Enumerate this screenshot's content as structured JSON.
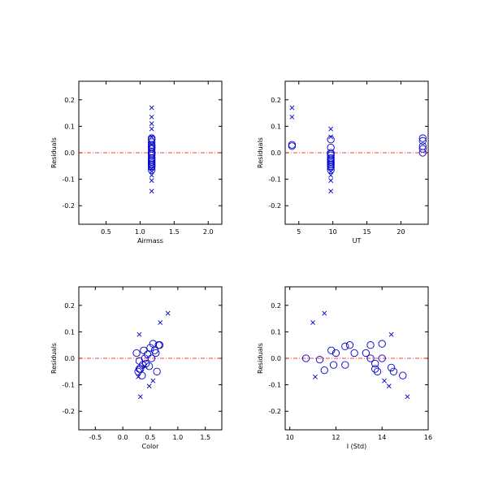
{
  "colors": {
    "marker": "#0000cc",
    "zero_line": "#ff0000",
    "axes": "#000000"
  },
  "chart_data": [
    {
      "type": "scatter",
      "xlabel": "Airmass",
      "ylabel": "Residuals",
      "xlim": [
        0.1,
        2.2
      ],
      "ylim": [
        -0.27,
        0.27
      ],
      "xticks": [
        0.5,
        1.0,
        1.5,
        2.0
      ],
      "xtick_labels": [
        "0.5",
        "1.0",
        "1.5",
        "2.0"
      ],
      "yticks": [
        -0.2,
        -0.1,
        0.0,
        0.1,
        0.2
      ],
      "ytick_labels": [
        "-0.2",
        "-0.1",
        "0.0",
        "0.1",
        "0.2"
      ],
      "reference_line_y": 0,
      "series": [
        {
          "marker": "circle",
          "points": [
            [
              1.17,
              0.055
            ],
            [
              1.17,
              0.05
            ],
            [
              1.17,
              0.04
            ],
            [
              1.17,
              0.03
            ],
            [
              1.17,
              0.025
            ],
            [
              1.17,
              0.02
            ],
            [
              1.17,
              0.015
            ],
            [
              1.17,
              0.005
            ],
            [
              1.17,
              0.0
            ],
            [
              1.17,
              -0.005
            ],
            [
              1.17,
              -0.01
            ],
            [
              1.17,
              -0.02
            ],
            [
              1.17,
              -0.025
            ],
            [
              1.17,
              -0.03
            ],
            [
              1.17,
              -0.035
            ],
            [
              1.17,
              -0.04
            ],
            [
              1.17,
              -0.045
            ],
            [
              1.17,
              -0.05
            ],
            [
              1.17,
              -0.055
            ],
            [
              1.17,
              -0.065
            ]
          ]
        },
        {
          "marker": "x",
          "points": [
            [
              1.17,
              0.17
            ],
            [
              1.17,
              0.135
            ],
            [
              1.17,
              0.11
            ],
            [
              1.17,
              0.09
            ],
            [
              1.17,
              0.06
            ],
            [
              1.17,
              0.03
            ],
            [
              1.17,
              -0.06
            ],
            [
              1.17,
              -0.07
            ],
            [
              1.17,
              -0.085
            ],
            [
              1.17,
              -0.105
            ],
            [
              1.17,
              -0.145
            ]
          ]
        }
      ]
    },
    {
      "type": "scatter",
      "xlabel": "UT",
      "ylabel": "Residuals",
      "xlim": [
        3,
        24
      ],
      "ylim": [
        -0.27,
        0.27
      ],
      "xticks": [
        5,
        10,
        15,
        20
      ],
      "xtick_labels": [
        "5",
        "10",
        "15",
        "20"
      ],
      "yticks": [
        -0.2,
        -0.1,
        0.0,
        0.1,
        0.2
      ],
      "ytick_labels": [
        "-0.2",
        "-0.1",
        "0.0",
        "0.1",
        "0.2"
      ],
      "reference_line_y": 0,
      "series": [
        {
          "marker": "circle",
          "points": [
            [
              4.0,
              0.03
            ],
            [
              4.0,
              0.025
            ],
            [
              9.7,
              0.05
            ],
            [
              9.7,
              0.02
            ],
            [
              9.7,
              0.0
            ],
            [
              9.7,
              -0.005
            ],
            [
              9.7,
              -0.01
            ],
            [
              9.7,
              -0.02
            ],
            [
              9.7,
              -0.025
            ],
            [
              9.7,
              -0.03
            ],
            [
              9.7,
              -0.035
            ],
            [
              9.7,
              -0.04
            ],
            [
              9.7,
              -0.045
            ],
            [
              9.7,
              -0.05
            ],
            [
              9.7,
              -0.055
            ],
            [
              9.7,
              -0.065
            ],
            [
              23.2,
              0.055
            ],
            [
              23.2,
              0.045
            ],
            [
              23.2,
              0.025
            ],
            [
              23.2,
              0.015
            ],
            [
              23.2,
              0.0
            ]
          ]
        },
        {
          "marker": "x",
          "points": [
            [
              4.0,
              0.17
            ],
            [
              4.0,
              0.135
            ],
            [
              9.7,
              0.09
            ],
            [
              9.7,
              0.06
            ],
            [
              9.7,
              -0.07
            ],
            [
              9.7,
              -0.085
            ],
            [
              9.7,
              -0.105
            ],
            [
              9.7,
              -0.145
            ]
          ]
        }
      ]
    },
    {
      "type": "scatter",
      "xlabel": "Color",
      "ylabel": "Residuals",
      "xlim": [
        -0.8,
        1.8
      ],
      "ylim": [
        -0.27,
        0.27
      ],
      "xticks": [
        -0.5,
        0.0,
        0.5,
        1.0,
        1.5
      ],
      "xtick_labels": [
        "-0.5",
        "0.0",
        "0.5",
        "1.0",
        "1.5"
      ],
      "yticks": [
        -0.2,
        -0.1,
        0.0,
        0.1,
        0.2
      ],
      "ytick_labels": [
        "-0.2",
        "-0.1",
        "0.0",
        "0.1",
        "0.2"
      ],
      "reference_line_y": 0,
      "series": [
        {
          "marker": "circle",
          "points": [
            [
              0.25,
              0.02
            ],
            [
              0.28,
              -0.05
            ],
            [
              0.3,
              -0.01
            ],
            [
              0.32,
              -0.04
            ],
            [
              0.35,
              -0.065
            ],
            [
              0.38,
              0.03
            ],
            [
              0.4,
              0.0
            ],
            [
              0.42,
              -0.02
            ],
            [
              0.45,
              0.015
            ],
            [
              0.48,
              -0.03
            ],
            [
              0.5,
              0.04
            ],
            [
              0.52,
              0.0
            ],
            [
              0.55,
              0.055
            ],
            [
              0.58,
              0.03
            ],
            [
              0.6,
              0.02
            ],
            [
              0.62,
              -0.05
            ],
            [
              0.65,
              0.05
            ],
            [
              0.67,
              0.05
            ],
            [
              0.3,
              -0.04
            ],
            [
              0.36,
              -0.025
            ]
          ]
        },
        {
          "marker": "x",
          "points": [
            [
              0.3,
              0.09
            ],
            [
              0.68,
              0.135
            ],
            [
              0.82,
              0.17
            ],
            [
              0.55,
              -0.085
            ],
            [
              0.48,
              -0.105
            ],
            [
              0.32,
              -0.145
            ],
            [
              0.28,
              -0.07
            ],
            [
              0.4,
              -0.03
            ]
          ]
        }
      ]
    },
    {
      "type": "scatter",
      "xlabel": "I (Std)",
      "ylabel": "Residuals",
      "xlim": [
        9.8,
        16
      ],
      "ylim": [
        -0.27,
        0.27
      ],
      "xticks": [
        10,
        12,
        14,
        16
      ],
      "xtick_labels": [
        "10",
        "12",
        "14",
        "16"
      ],
      "yticks": [
        -0.2,
        -0.1,
        0.0,
        0.1,
        0.2
      ],
      "ytick_labels": [
        "-0.2",
        "-0.1",
        "0.0",
        "0.1",
        "0.2"
      ],
      "reference_line_y": 0,
      "series": [
        {
          "marker": "circle",
          "points": [
            [
              10.7,
              0.0
            ],
            [
              11.3,
              -0.005
            ],
            [
              11.5,
              -0.045
            ],
            [
              11.8,
              0.03
            ],
            [
              11.9,
              -0.025
            ],
            [
              12.0,
              0.02
            ],
            [
              12.4,
              0.045
            ],
            [
              12.4,
              -0.025
            ],
            [
              12.6,
              0.05
            ],
            [
              12.8,
              0.02
            ],
            [
              13.3,
              0.02
            ],
            [
              13.5,
              0.05
            ],
            [
              13.5,
              0.0
            ],
            [
              13.7,
              -0.02
            ],
            [
              13.7,
              -0.04
            ],
            [
              13.8,
              -0.05
            ],
            [
              14.0,
              0.055
            ],
            [
              14.0,
              0.0
            ],
            [
              14.4,
              -0.035
            ],
            [
              14.5,
              -0.05
            ],
            [
              14.9,
              -0.065
            ]
          ]
        },
        {
          "marker": "x",
          "points": [
            [
              11.0,
              0.135
            ],
            [
              11.1,
              -0.07
            ],
            [
              11.5,
              0.17
            ],
            [
              14.4,
              0.09
            ],
            [
              14.1,
              -0.085
            ],
            [
              14.3,
              -0.105
            ],
            [
              15.1,
              -0.145
            ]
          ]
        }
      ]
    }
  ]
}
